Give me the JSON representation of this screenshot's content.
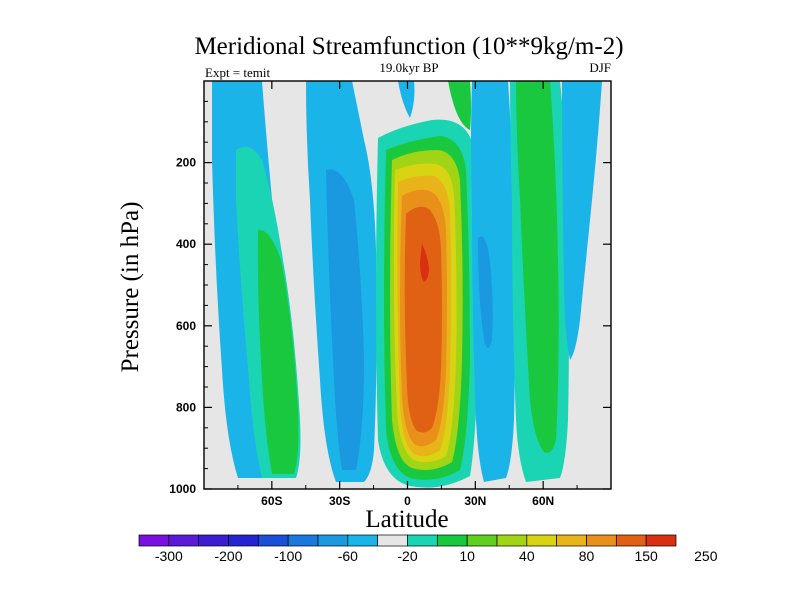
{
  "chart_data": {
    "type": "filled-contour",
    "title": "Meridional Streamfunction (10**9kg/m-2)",
    "subtitle_left": "Expt = temit",
    "subtitle_center": "19.0kyr BP",
    "subtitle_right": "DJF",
    "xlabel": "Latitude",
    "ylabel": "Pressure (in hPa)",
    "xlim": [
      -90,
      90
    ],
    "ylim": [
      0,
      1000
    ],
    "y_inverted": true,
    "x_ticks": [
      {
        "value": -60,
        "label": "60S"
      },
      {
        "value": -30,
        "label": "30S"
      },
      {
        "value": 0,
        "label": "0"
      },
      {
        "value": 30,
        "label": "30N"
      },
      {
        "value": 60,
        "label": "60N"
      }
    ],
    "y_ticks": [
      {
        "value": 200,
        "label": "200"
      },
      {
        "value": 400,
        "label": "400"
      },
      {
        "value": 600,
        "label": "600"
      },
      {
        "value": 800,
        "label": "800"
      },
      {
        "value": 1000,
        "label": "1000"
      }
    ],
    "colorbar": {
      "colors": [
        "#7a10e0",
        "#5a1ad8",
        "#3a1ed0",
        "#2424d0",
        "#1a4fd8",
        "#1a78dc",
        "#1a98e0",
        "#1ab4e8",
        "#e6e6e6",
        "#1ad4b4",
        "#1ac840",
        "#60d020",
        "#a0d414",
        "#d8d414",
        "#e8b41a",
        "#e8901a",
        "#e06014",
        "#d83010"
      ],
      "tick_labels": [
        "-300",
        "-200",
        "-100",
        "-60",
        "-20",
        "10",
        "40",
        "80",
        "150",
        "250"
      ]
    },
    "regions": [
      {
        "level": 0,
        "color": "#e6e6e6",
        "lat": [
          -90,
          90
        ],
        "p": [
          0,
          1000
        ]
      },
      {
        "level": -20,
        "color": "#1ab4e8",
        "lat": [
          -82,
          -59
        ],
        "p": [
          0,
          930
        ],
        "note": "SH high-latitude cell"
      },
      {
        "level": 10,
        "color": "#1ad4b4",
        "lat": [
          -72,
          -47
        ],
        "p": [
          150,
          960
        ],
        "note": "SH Ferrel cell"
      },
      {
        "level": 40,
        "color": "#1ac840",
        "lat": [
          -65,
          -52
        ],
        "p": [
          300,
          950
        ]
      },
      {
        "level": -20,
        "color": "#1ab4e8",
        "lat": [
          -42,
          -17
        ],
        "p": [
          0,
          980
        ]
      },
      {
        "level": 250,
        "color": "#d83010",
        "lat": [
          -20,
          28
        ],
        "p": [
          150,
          990
        ],
        "note": "Hadley cell core, max near 5N 450hPa"
      },
      {
        "level": -20,
        "color": "#1ab4e8",
        "lat": [
          20,
          42
        ],
        "p": [
          0,
          980
        ],
        "note": "NH Hadley return"
      },
      {
        "level": 40,
        "color": "#1ac840",
        "lat": [
          39,
          63
        ],
        "p": [
          0,
          960
        ],
        "note": "NH Ferrel cell"
      },
      {
        "level": -20,
        "color": "#1ab4e8",
        "lat": [
          62,
          80
        ],
        "p": [
          0,
          650
        ]
      }
    ]
  }
}
